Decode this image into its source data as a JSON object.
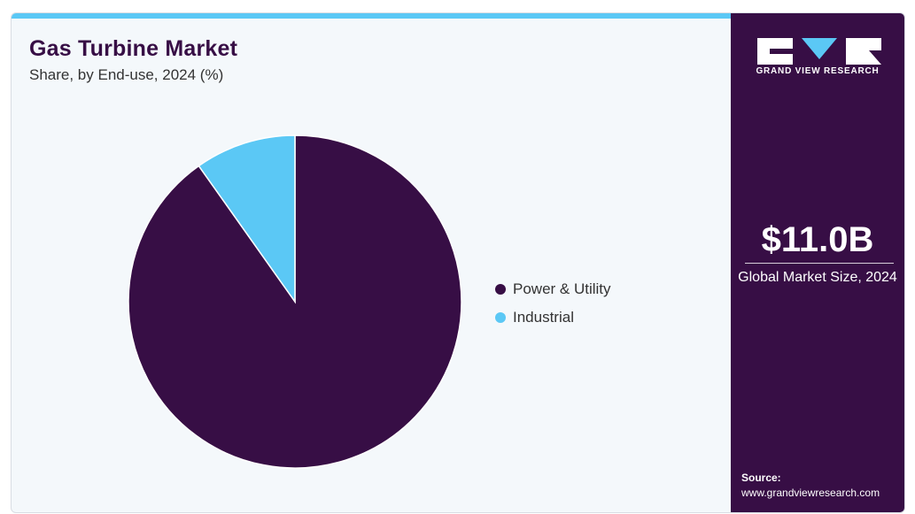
{
  "header": {
    "title": "Gas Turbine Market",
    "subtitle": "Share, by End-use, 2024 (%)"
  },
  "chart_data": {
    "type": "pie",
    "title": "Gas Turbine Market",
    "subtitle": "Share, by End-use, 2024 (%)",
    "categories": [
      "Power & Utility",
      "Industrial"
    ],
    "values": [
      90.2,
      9.8
    ],
    "colors": [
      "#370e45",
      "#5bc8f5"
    ],
    "start_angle": "12 o'clock, clockwise",
    "legend_position": "right"
  },
  "sidebar": {
    "brand": "GRAND VIEW RESEARCH",
    "market_size": "$11.0B",
    "market_size_label": "Global Market Size, 2024",
    "source_label": "Source:",
    "source_url": "www.grandviewresearch.com"
  },
  "colors": {
    "accent": "#5bc8f5",
    "brand": "#370e45",
    "background": "#f4f8fb"
  }
}
